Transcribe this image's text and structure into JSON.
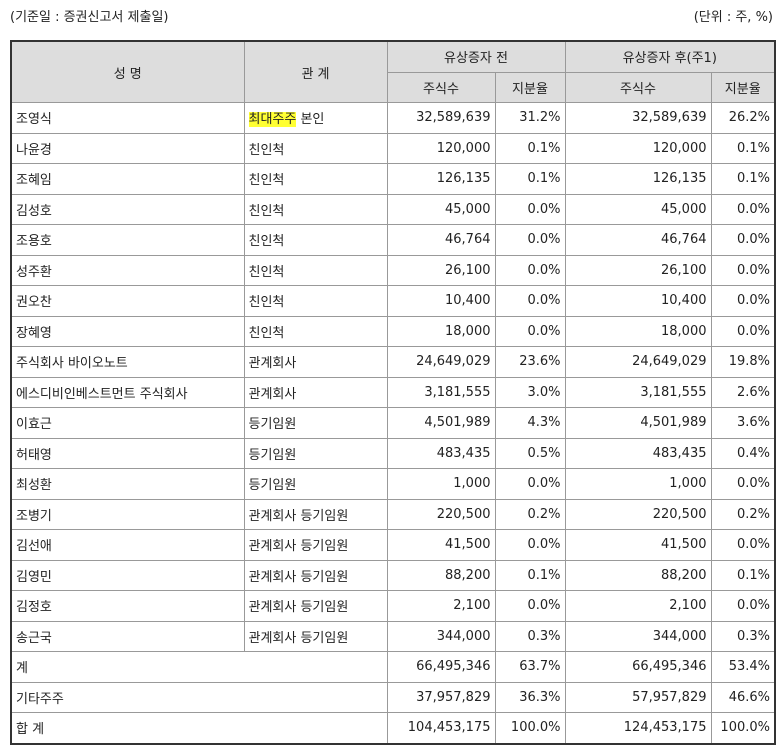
{
  "header": {
    "basis": "(기준일 : 증권신고서 제출일)",
    "unit": "(단위 : 주, %)"
  },
  "columns": {
    "name": "성 명",
    "relation": "관 계",
    "before": "유상증자 전",
    "after": "유상증자 후(주1)",
    "shares": "주식수",
    "ratio": "지분율"
  },
  "highlight_color": "#ffff33",
  "rows": [
    {
      "name": "조영식",
      "rel_hl": "최대주주",
      "rel": " 본인",
      "s1": "32,589,639",
      "p1": "31.2%",
      "s2": "32,589,639",
      "p2": "26.2%"
    },
    {
      "name": "나윤경",
      "rel": "친인척",
      "s1": "120,000",
      "p1": "0.1%",
      "s2": "120,000",
      "p2": "0.1%"
    },
    {
      "name": "조혜임",
      "rel": "친인척",
      "s1": "126,135",
      "p1": "0.1%",
      "s2": "126,135",
      "p2": "0.1%"
    },
    {
      "name": "김성호",
      "rel": "친인척",
      "s1": "45,000",
      "p1": "0.0%",
      "s2": "45,000",
      "p2": "0.0%"
    },
    {
      "name": "조용호",
      "rel": "친인척",
      "s1": "46,764",
      "p1": "0.0%",
      "s2": "46,764",
      "p2": "0.0%"
    },
    {
      "name": "성주환",
      "rel": "친인척",
      "s1": "26,100",
      "p1": "0.0%",
      "s2": "26,100",
      "p2": "0.0%"
    },
    {
      "name": "권오찬",
      "rel": "친인척",
      "s1": "10,400",
      "p1": "0.0%",
      "s2": "10,400",
      "p2": "0.0%"
    },
    {
      "name": "장혜영",
      "rel": "친인척",
      "s1": "18,000",
      "p1": "0.0%",
      "s2": "18,000",
      "p2": "0.0%"
    },
    {
      "name": "주식회사 바이오노트",
      "rel": "관계회사",
      "s1": "24,649,029",
      "p1": "23.6%",
      "s2": "24,649,029",
      "p2": "19.8%"
    },
    {
      "name": "에스디비인베스트먼트 주식회사",
      "rel": "관계회사",
      "s1": "3,181,555",
      "p1": "3.0%",
      "s2": "3,181,555",
      "p2": "2.6%"
    },
    {
      "name": "이효근",
      "rel": "등기임원",
      "s1": "4,501,989",
      "p1": "4.3%",
      "s2": "4,501,989",
      "p2": "3.6%"
    },
    {
      "name": "허태영",
      "rel": "등기임원",
      "s1": "483,435",
      "p1": "0.5%",
      "s2": "483,435",
      "p2": "0.4%"
    },
    {
      "name": "최성환",
      "rel": "등기임원",
      "s1": "1,000",
      "p1": "0.0%",
      "s2": "1,000",
      "p2": "0.0%"
    },
    {
      "name": "조병기",
      "rel": "관계회사 등기임원",
      "s1": "220,500",
      "p1": "0.2%",
      "s2": "220,500",
      "p2": "0.2%"
    },
    {
      "name": "김선애",
      "rel": "관계회사 등기임원",
      "s1": "41,500",
      "p1": "0.0%",
      "s2": "41,500",
      "p2": "0.0%"
    },
    {
      "name": "김영민",
      "rel": "관계회사 등기임원",
      "s1": "88,200",
      "p1": "0.1%",
      "s2": "88,200",
      "p2": "0.1%"
    },
    {
      "name": "김정호",
      "rel": "관계회사 등기임원",
      "s1": "2,100",
      "p1": "0.0%",
      "s2": "2,100",
      "p2": "0.0%"
    },
    {
      "name": "송근국",
      "rel": "관계회사 등기임원",
      "s1": "344,000",
      "p1": "0.3%",
      "s2": "344,000",
      "p2": "0.3%"
    }
  ],
  "totals": [
    {
      "name": "계",
      "s1": "66,495,346",
      "p1": "63.7%",
      "s2": "66,495,346",
      "p2": "53.4%"
    },
    {
      "name": "기타주주",
      "s1": "37,957,829",
      "p1": "36.3%",
      "s2": "57,957,829",
      "p2": "46.6%"
    },
    {
      "name": "합 계",
      "s1": "104,453,175",
      "p1": "100.0%",
      "s2": "124,453,175",
      "p2": "100.0%"
    }
  ]
}
